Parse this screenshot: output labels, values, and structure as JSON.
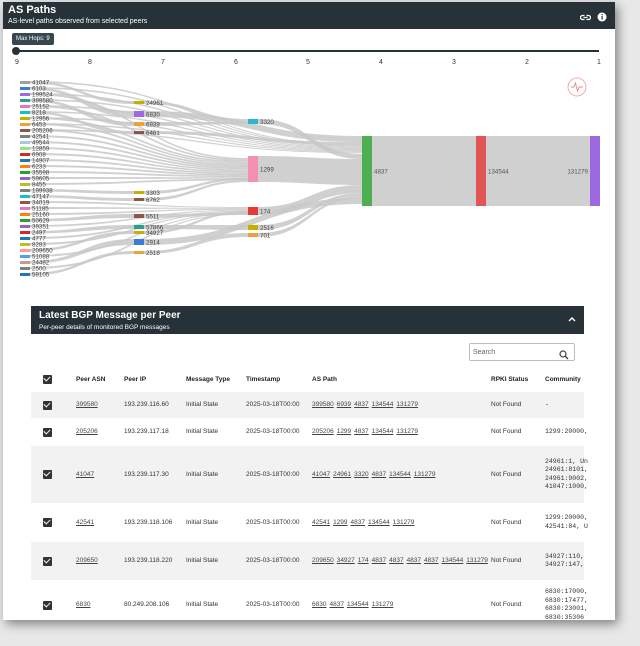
{
  "header": {
    "title": "AS Paths",
    "subtitle": "AS-level paths observed from selected peers"
  },
  "slider": {
    "label": "Max Hops: 9",
    "value": 9,
    "ticks": [
      "9",
      "8",
      "7",
      "6",
      "5",
      "4",
      "3",
      "2",
      "1"
    ]
  },
  "sankey": {
    "peers": [
      "41047",
      "6103",
      "199524",
      "399580",
      "25152",
      "8218",
      "12956",
      "6453",
      "205206",
      "42541",
      "49544",
      "12859",
      "6908",
      "14907",
      "6233",
      "35598",
      "59605",
      "8455",
      "199938",
      "47147",
      "34019",
      "51185",
      "25160",
      "50629",
      "39351",
      "2497",
      "4777",
      "8283",
      "209650",
      "51088",
      "24482",
      "2500",
      "59105"
    ],
    "peer_colors": [
      "#9e9e9e",
      "#3a7bd5",
      "#9c6ade",
      "#2e9c8e",
      "#e377c2",
      "#17becf",
      "#c5b000",
      "#e8a33d",
      "#8c564b",
      "#7f7f7f",
      "#aec7e8",
      "#98df8a",
      "#d62728",
      "#1f77b4",
      "#ff7f0e",
      "#2ca02c",
      "#9467bd",
      "#bcbd22",
      "#7f7f7f",
      "#17becf",
      "#8c564b",
      "#e377c2",
      "#ff7f0e",
      "#2ca02c",
      "#9467bd",
      "#d62728",
      "#1f77b4",
      "#bcbd22",
      "#ff9896",
      "#4fa3e0",
      "#c49c94",
      "#7f7f7f",
      "#1f77b4"
    ],
    "hop7_nodes": [
      {
        "label": "24961",
        "color": "#c5b000"
      },
      {
        "label": "6830",
        "color": "#9c6ade"
      },
      {
        "label": "6939",
        "color": "#e8a33d"
      },
      {
        "label": "6461",
        "color": "#8c564b"
      },
      {
        "label": "3303",
        "color": "#c5b000"
      },
      {
        "label": "6762",
        "color": "#8c564b"
      },
      {
        "label": "5511",
        "color": "#8c564b"
      },
      {
        "label": "57866",
        "color": "#2e9c8e"
      },
      {
        "label": "34927",
        "color": "#c5b000"
      },
      {
        "label": "2914",
        "color": "#3a7bd5"
      },
      {
        "label": "2518",
        "color": "#e8a33d"
      }
    ],
    "hop6_nodes": [
      {
        "label": "3320",
        "color": "#29b6d6"
      },
      {
        "label": "1299",
        "color": "#f48fb1"
      },
      {
        "label": "174",
        "color": "#e53935"
      },
      {
        "label": "2516",
        "color": "#c5b000"
      },
      {
        "label": "701",
        "color": "#e8a33d"
      }
    ],
    "hop4": {
      "label": "4837",
      "color": "#4caf50"
    },
    "hop3": {
      "label": "134544",
      "color": "#e05555"
    },
    "hop1": {
      "label": "131279",
      "color": "#9c6ade"
    }
  },
  "bgp": {
    "title": "Latest BGP Message per Peer",
    "subtitle": "Per-peer details of monitored BGP messages",
    "search_placeholder": "Search",
    "columns": [
      "Peer ASN",
      "Peer IP",
      "Message Type",
      "Timestamp",
      "AS Path",
      "RPKI Status",
      "Community"
    ],
    "rows": [
      {
        "asn": "399580",
        "ip": "193.239.116.60",
        "type": "Initial State",
        "ts": "2025-03-18T00:00",
        "path": [
          "399580",
          "6939",
          "4837",
          "134544",
          "131279"
        ],
        "rpki": "Not Found",
        "community": "-"
      },
      {
        "asn": "205206",
        "ip": "193.239.117.18",
        "type": "Initial State",
        "ts": "2025-03-18T00:00",
        "path": [
          "205206",
          "1299",
          "4837",
          "134544",
          "131279"
        ],
        "rpki": "Not Found",
        "community": "1299:20000,"
      },
      {
        "asn": "41047",
        "ip": "193.239.117.30",
        "type": "Initial State",
        "ts": "2025-03-18T00:00",
        "path": [
          "41047",
          "24961",
          "3320",
          "4837",
          "134544",
          "131279"
        ],
        "rpki": "Not Found",
        "community": "24961:1, Un\n24961:8101,\n24961:9002,\n41047:1000,"
      },
      {
        "asn": "42541",
        "ip": "193.239.118.106",
        "type": "Initial State",
        "ts": "2025-03-18T00:00",
        "path": [
          "42541",
          "1299",
          "4837",
          "134544",
          "131279"
        ],
        "rpki": "Not Found",
        "community": "1299:20000,\n42541:84, U"
      },
      {
        "asn": "209650",
        "ip": "193.239.118.220",
        "type": "Initial State",
        "ts": "2025-03-18T00:00",
        "path": [
          "209650",
          "34927",
          "174",
          "4837",
          "4837",
          "4837",
          "4837",
          "134544",
          "131279"
        ],
        "rpki": "Not Found",
        "community": "34927:110,\n34927:147,"
      },
      {
        "asn": "6830",
        "ip": "80.249.208.106",
        "type": "Initial State",
        "ts": "2025-03-18T00:00",
        "path": [
          "6830",
          "4837",
          "134544",
          "131279"
        ],
        "rpki": "Not Found",
        "community": "6830:17000,\n6830:17477,\n6830:23001,\n6830:35306"
      }
    ]
  }
}
